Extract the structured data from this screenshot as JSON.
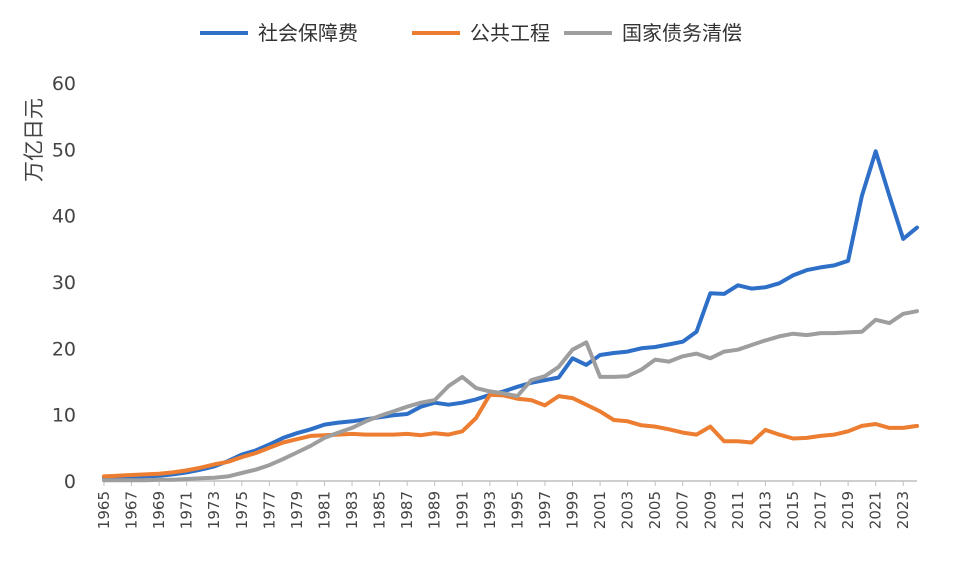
{
  "chart_data": {
    "type": "line",
    "title": "",
    "xlabel": "",
    "ylabel": "万亿日元",
    "ylim": [
      0,
      60
    ],
    "yticks": [
      0,
      10,
      20,
      30,
      40,
      50,
      60
    ],
    "x": [
      1965,
      1966,
      1967,
      1968,
      1969,
      1970,
      1971,
      1972,
      1973,
      1974,
      1975,
      1976,
      1977,
      1978,
      1979,
      1980,
      1981,
      1982,
      1983,
      1984,
      1985,
      1986,
      1987,
      1988,
      1989,
      1990,
      1991,
      1992,
      1993,
      1994,
      1995,
      1996,
      1997,
      1998,
      1999,
      2000,
      2001,
      2002,
      2003,
      2004,
      2005,
      2006,
      2007,
      2008,
      2009,
      2010,
      2011,
      2012,
      2013,
      2014,
      2015,
      2016,
      2017,
      2018,
      2019,
      2020,
      2021,
      2022,
      2023,
      2024
    ],
    "xtick_labels": [
      "1965",
      "1967",
      "1969",
      "1971",
      "1973",
      "1975",
      "1977",
      "1979",
      "1981",
      "1983",
      "1985",
      "1987",
      "1989",
      "1991",
      "1993",
      "1995",
      "1997",
      "1999",
      "2001",
      "2003",
      "2005",
      "2007",
      "2009",
      "2011",
      "2013",
      "2015",
      "2017",
      "2019",
      "2021",
      "2023"
    ],
    "legend_position": "top",
    "grid": false,
    "series": [
      {
        "name": "社会保障费",
        "color": "#2E6FC7",
        "values": [
          0.5,
          0.6,
          0.6,
          0.7,
          0.8,
          1.0,
          1.3,
          1.7,
          2.2,
          3.0,
          4.0,
          4.6,
          5.5,
          6.5,
          7.2,
          7.8,
          8.5,
          8.8,
          9.0,
          9.3,
          9.6,
          9.9,
          10.1,
          11.2,
          11.8,
          11.5,
          11.8,
          12.3,
          13.0,
          13.5,
          14.2,
          14.8,
          15.2,
          15.6,
          18.5,
          17.5,
          19.0,
          19.3,
          19.5,
          20.0,
          20.2,
          20.6,
          21.0,
          22.5,
          28.3,
          28.2,
          29.5,
          29.0,
          29.2,
          29.8,
          31.0,
          31.8,
          32.2,
          32.5,
          33.2,
          43.0,
          49.7,
          43.0,
          36.5,
          38.2
        ]
      },
      {
        "name": "公共工程",
        "color": "#ED7D31",
        "values": [
          0.7,
          0.8,
          0.9,
          1.0,
          1.1,
          1.3,
          1.6,
          2.0,
          2.5,
          2.9,
          3.6,
          4.2,
          5.0,
          5.8,
          6.3,
          6.8,
          6.9,
          7.0,
          7.1,
          7.0,
          7.0,
          7.0,
          7.1,
          6.9,
          7.2,
          7.0,
          7.5,
          9.5,
          13.0,
          12.9,
          12.4,
          12.2,
          11.4,
          12.8,
          12.5,
          11.5,
          10.5,
          9.2,
          9.0,
          8.4,
          8.2,
          7.8,
          7.3,
          7.0,
          8.2,
          6.0,
          6.0,
          5.8,
          7.7,
          7.0,
          6.4,
          6.5,
          6.8,
          7.0,
          7.5,
          8.3,
          8.6,
          8.0,
          8.0,
          8.3
        ]
      },
      {
        "name": "国家债务清偿",
        "color": "#9E9E9E",
        "values": [
          0.1,
          0.1,
          0.1,
          0.1,
          0.2,
          0.2,
          0.3,
          0.4,
          0.5,
          0.7,
          1.2,
          1.7,
          2.4,
          3.3,
          4.3,
          5.3,
          6.5,
          7.3,
          8.0,
          9.0,
          9.8,
          10.5,
          11.2,
          11.8,
          12.2,
          14.3,
          15.7,
          14.0,
          13.5,
          13.2,
          12.8,
          15.2,
          15.8,
          17.2,
          19.8,
          20.9,
          15.7,
          15.7,
          15.8,
          16.8,
          18.3,
          18.0,
          18.8,
          19.2,
          18.5,
          19.5,
          19.8,
          20.5,
          21.2,
          21.8,
          22.2,
          22.0,
          22.3,
          22.3,
          22.4,
          22.5,
          24.3,
          23.8,
          25.2,
          25.6
        ]
      }
    ]
  }
}
